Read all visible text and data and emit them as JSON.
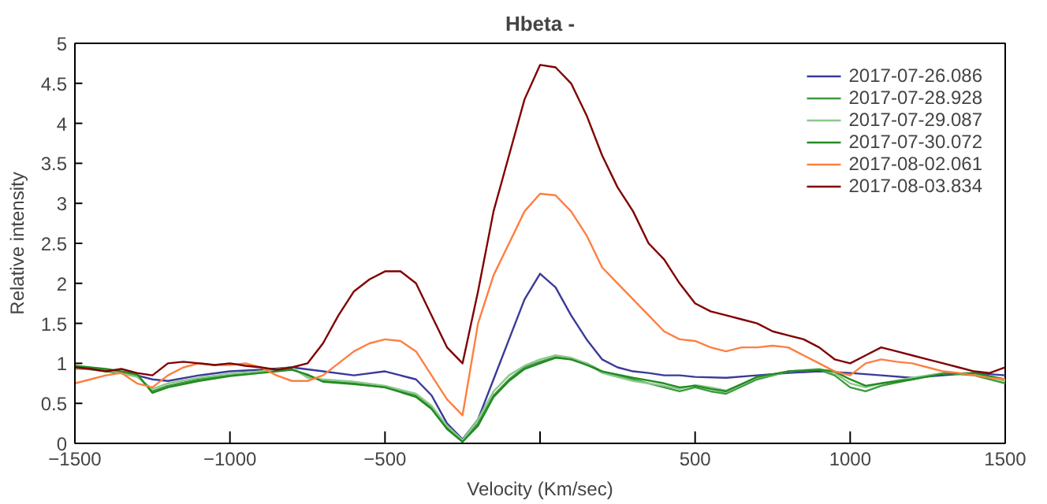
{
  "chart_data": {
    "type": "line",
    "title": "Hbeta -",
    "xlabel": "Velocity (Km/sec)",
    "ylabel": "Relative intensity",
    "xlim": [
      -1500,
      1500
    ],
    "ylim": [
      0,
      5
    ],
    "xticks": [
      -1500,
      -1000,
      -500,
      {
        "value": 0,
        "label": null
      },
      500,
      1000,
      1500
    ],
    "yticks": [
      0,
      0.5,
      1,
      1.5,
      2,
      2.5,
      3,
      3.5,
      4,
      4.5,
      5
    ],
    "grid": false,
    "legend": "top right",
    "line_style": "solid",
    "marker": "none",
    "series": [
      {
        "name": "2017-07-26.086",
        "color": "#3a3a9a",
        "x": [
          -1500,
          -1400,
          -1300,
          -1250,
          -1200,
          -1100,
          -1000,
          -900,
          -800,
          -700,
          -600,
          -500,
          -450,
          -400,
          -350,
          -300,
          -250,
          -200,
          -150,
          -100,
          -50,
          0,
          50,
          100,
          150,
          200,
          250,
          300,
          350,
          400,
          450,
          500,
          600,
          700,
          800,
          900,
          1000,
          1100,
          1200,
          1300,
          1400,
          1500
        ],
        "values": [
          0.95,
          0.92,
          0.85,
          0.8,
          0.78,
          0.85,
          0.9,
          0.92,
          0.95,
          0.9,
          0.85,
          0.9,
          0.85,
          0.8,
          0.6,
          0.25,
          0.05,
          0.3,
          0.8,
          1.3,
          1.8,
          2.12,
          1.95,
          1.6,
          1.3,
          1.05,
          0.95,
          0.9,
          0.88,
          0.85,
          0.85,
          0.83,
          0.82,
          0.85,
          0.88,
          0.9,
          0.88,
          0.85,
          0.82,
          0.85,
          0.88,
          0.85
        ]
      },
      {
        "name": "2017-07-28.928",
        "color": "#3c9a3c",
        "x": [
          -1500,
          -1400,
          -1300,
          -1250,
          -1200,
          -1100,
          -1000,
          -900,
          -800,
          -750,
          -700,
          -600,
          -500,
          -400,
          -350,
          -300,
          -250,
          -200,
          -150,
          -100,
          -50,
          0,
          50,
          100,
          150,
          200,
          300,
          400,
          450,
          500,
          550,
          600,
          700,
          800,
          900,
          950,
          1000,
          1050,
          1100,
          1200,
          1300,
          1400,
          1500
        ],
        "values": [
          0.95,
          0.9,
          0.85,
          0.65,
          0.72,
          0.8,
          0.85,
          0.9,
          0.93,
          0.85,
          0.78,
          0.75,
          0.7,
          0.6,
          0.45,
          0.2,
          0.02,
          0.25,
          0.6,
          0.8,
          0.95,
          1.02,
          1.08,
          1.05,
          1.0,
          0.9,
          0.8,
          0.7,
          0.65,
          0.7,
          0.65,
          0.62,
          0.8,
          0.9,
          0.92,
          0.85,
          0.7,
          0.65,
          0.72,
          0.8,
          0.88,
          0.85,
          0.75
        ]
      },
      {
        "name": "2017-07-29.087",
        "color": "#8cc88c",
        "x": [
          -1500,
          -1400,
          -1300,
          -1250,
          -1200,
          -1100,
          -1000,
          -900,
          -800,
          -750,
          -700,
          -600,
          -500,
          -400,
          -350,
          -300,
          -250,
          -200,
          -150,
          -100,
          -50,
          0,
          50,
          100,
          150,
          200,
          300,
          400,
          450,
          500,
          550,
          600,
          700,
          800,
          900,
          950,
          1000,
          1050,
          1100,
          1200,
          1300,
          1400,
          1500
        ],
        "values": [
          0.93,
          0.92,
          0.83,
          0.68,
          0.75,
          0.82,
          0.87,
          0.9,
          0.95,
          0.82,
          0.8,
          0.77,
          0.72,
          0.62,
          0.47,
          0.22,
          0.04,
          0.3,
          0.65,
          0.85,
          0.97,
          1.05,
          1.1,
          1.07,
          1.0,
          0.88,
          0.78,
          0.72,
          0.68,
          0.73,
          0.7,
          0.66,
          0.82,
          0.9,
          0.93,
          0.88,
          0.75,
          0.7,
          0.75,
          0.82,
          0.88,
          0.87,
          0.78
        ]
      },
      {
        "name": "2017-07-30.072",
        "color": "#228b22",
        "x": [
          -1500,
          -1400,
          -1300,
          -1250,
          -1200,
          -1100,
          -1000,
          -900,
          -800,
          -750,
          -700,
          -600,
          -500,
          -400,
          -350,
          -300,
          -250,
          -200,
          -150,
          -100,
          -50,
          0,
          50,
          100,
          150,
          200,
          300,
          400,
          450,
          500,
          550,
          600,
          700,
          800,
          900,
          950,
          1000,
          1050,
          1100,
          1200,
          1300,
          1400,
          1500
        ],
        "values": [
          0.97,
          0.93,
          0.87,
          0.63,
          0.7,
          0.78,
          0.84,
          0.88,
          0.92,
          0.86,
          0.77,
          0.74,
          0.7,
          0.58,
          0.43,
          0.18,
          0.02,
          0.22,
          0.58,
          0.78,
          0.93,
          1.0,
          1.07,
          1.05,
          0.98,
          0.9,
          0.82,
          0.75,
          0.7,
          0.72,
          0.68,
          0.65,
          0.83,
          0.9,
          0.92,
          0.9,
          0.8,
          0.72,
          0.75,
          0.8,
          0.87,
          0.88,
          0.8
        ]
      },
      {
        "name": "2017-08-02.061",
        "color": "#ff7f3f",
        "x": [
          -1500,
          -1450,
          -1400,
          -1350,
          -1300,
          -1250,
          -1200,
          -1150,
          -1100,
          -1050,
          -1000,
          -950,
          -900,
          -850,
          -800,
          -750,
          -700,
          -650,
          -600,
          -550,
          -500,
          -450,
          -400,
          -350,
          -300,
          -250,
          -200,
          -150,
          -100,
          -50,
          0,
          50,
          100,
          150,
          200,
          250,
          300,
          350,
          400,
          450,
          500,
          550,
          600,
          650,
          700,
          750,
          800,
          850,
          900,
          950,
          1000,
          1050,
          1100,
          1150,
          1200,
          1250,
          1300,
          1350,
          1400,
          1450,
          1500
        ],
        "values": [
          0.75,
          0.8,
          0.85,
          0.88,
          0.75,
          0.7,
          0.85,
          0.95,
          1.0,
          0.98,
          0.98,
          1.0,
          0.95,
          0.85,
          0.78,
          0.78,
          0.85,
          1.0,
          1.15,
          1.25,
          1.3,
          1.28,
          1.15,
          0.85,
          0.55,
          0.35,
          1.5,
          2.1,
          2.5,
          2.9,
          3.12,
          3.1,
          2.9,
          2.6,
          2.2,
          2.0,
          1.8,
          1.6,
          1.4,
          1.3,
          1.28,
          1.2,
          1.15,
          1.2,
          1.2,
          1.22,
          1.2,
          1.1,
          1.0,
          0.9,
          0.85,
          1.0,
          1.05,
          1.02,
          1.0,
          0.95,
          0.9,
          0.88,
          0.85,
          0.82,
          0.8
        ]
      },
      {
        "name": "2017-08-03.834",
        "color": "#800000",
        "x": [
          -1500,
          -1450,
          -1400,
          -1350,
          -1300,
          -1250,
          -1200,
          -1150,
          -1100,
          -1050,
          -1000,
          -950,
          -900,
          -850,
          -800,
          -750,
          -700,
          -650,
          -600,
          -550,
          -500,
          -450,
          -400,
          -350,
          -300,
          -250,
          -200,
          -150,
          -100,
          -50,
          0,
          50,
          100,
          150,
          200,
          250,
          300,
          350,
          400,
          450,
          500,
          550,
          600,
          650,
          700,
          750,
          800,
          850,
          900,
          950,
          1000,
          1050,
          1100,
          1150,
          1200,
          1250,
          1300,
          1350,
          1400,
          1450,
          1500
        ],
        "values": [
          0.95,
          0.93,
          0.9,
          0.93,
          0.88,
          0.85,
          1.0,
          1.02,
          1.0,
          0.98,
          1.0,
          0.97,
          0.95,
          0.92,
          0.95,
          1.0,
          1.25,
          1.6,
          1.9,
          2.05,
          2.15,
          2.15,
          2.0,
          1.6,
          1.2,
          1.0,
          1.9,
          2.9,
          3.6,
          4.3,
          4.73,
          4.7,
          4.5,
          4.1,
          3.6,
          3.2,
          2.9,
          2.5,
          2.3,
          2.0,
          1.75,
          1.65,
          1.6,
          1.55,
          1.5,
          1.4,
          1.35,
          1.3,
          1.2,
          1.05,
          1.0,
          1.1,
          1.2,
          1.15,
          1.1,
          1.05,
          1.0,
          0.95,
          0.9,
          0.88,
          0.95
        ]
      }
    ]
  }
}
